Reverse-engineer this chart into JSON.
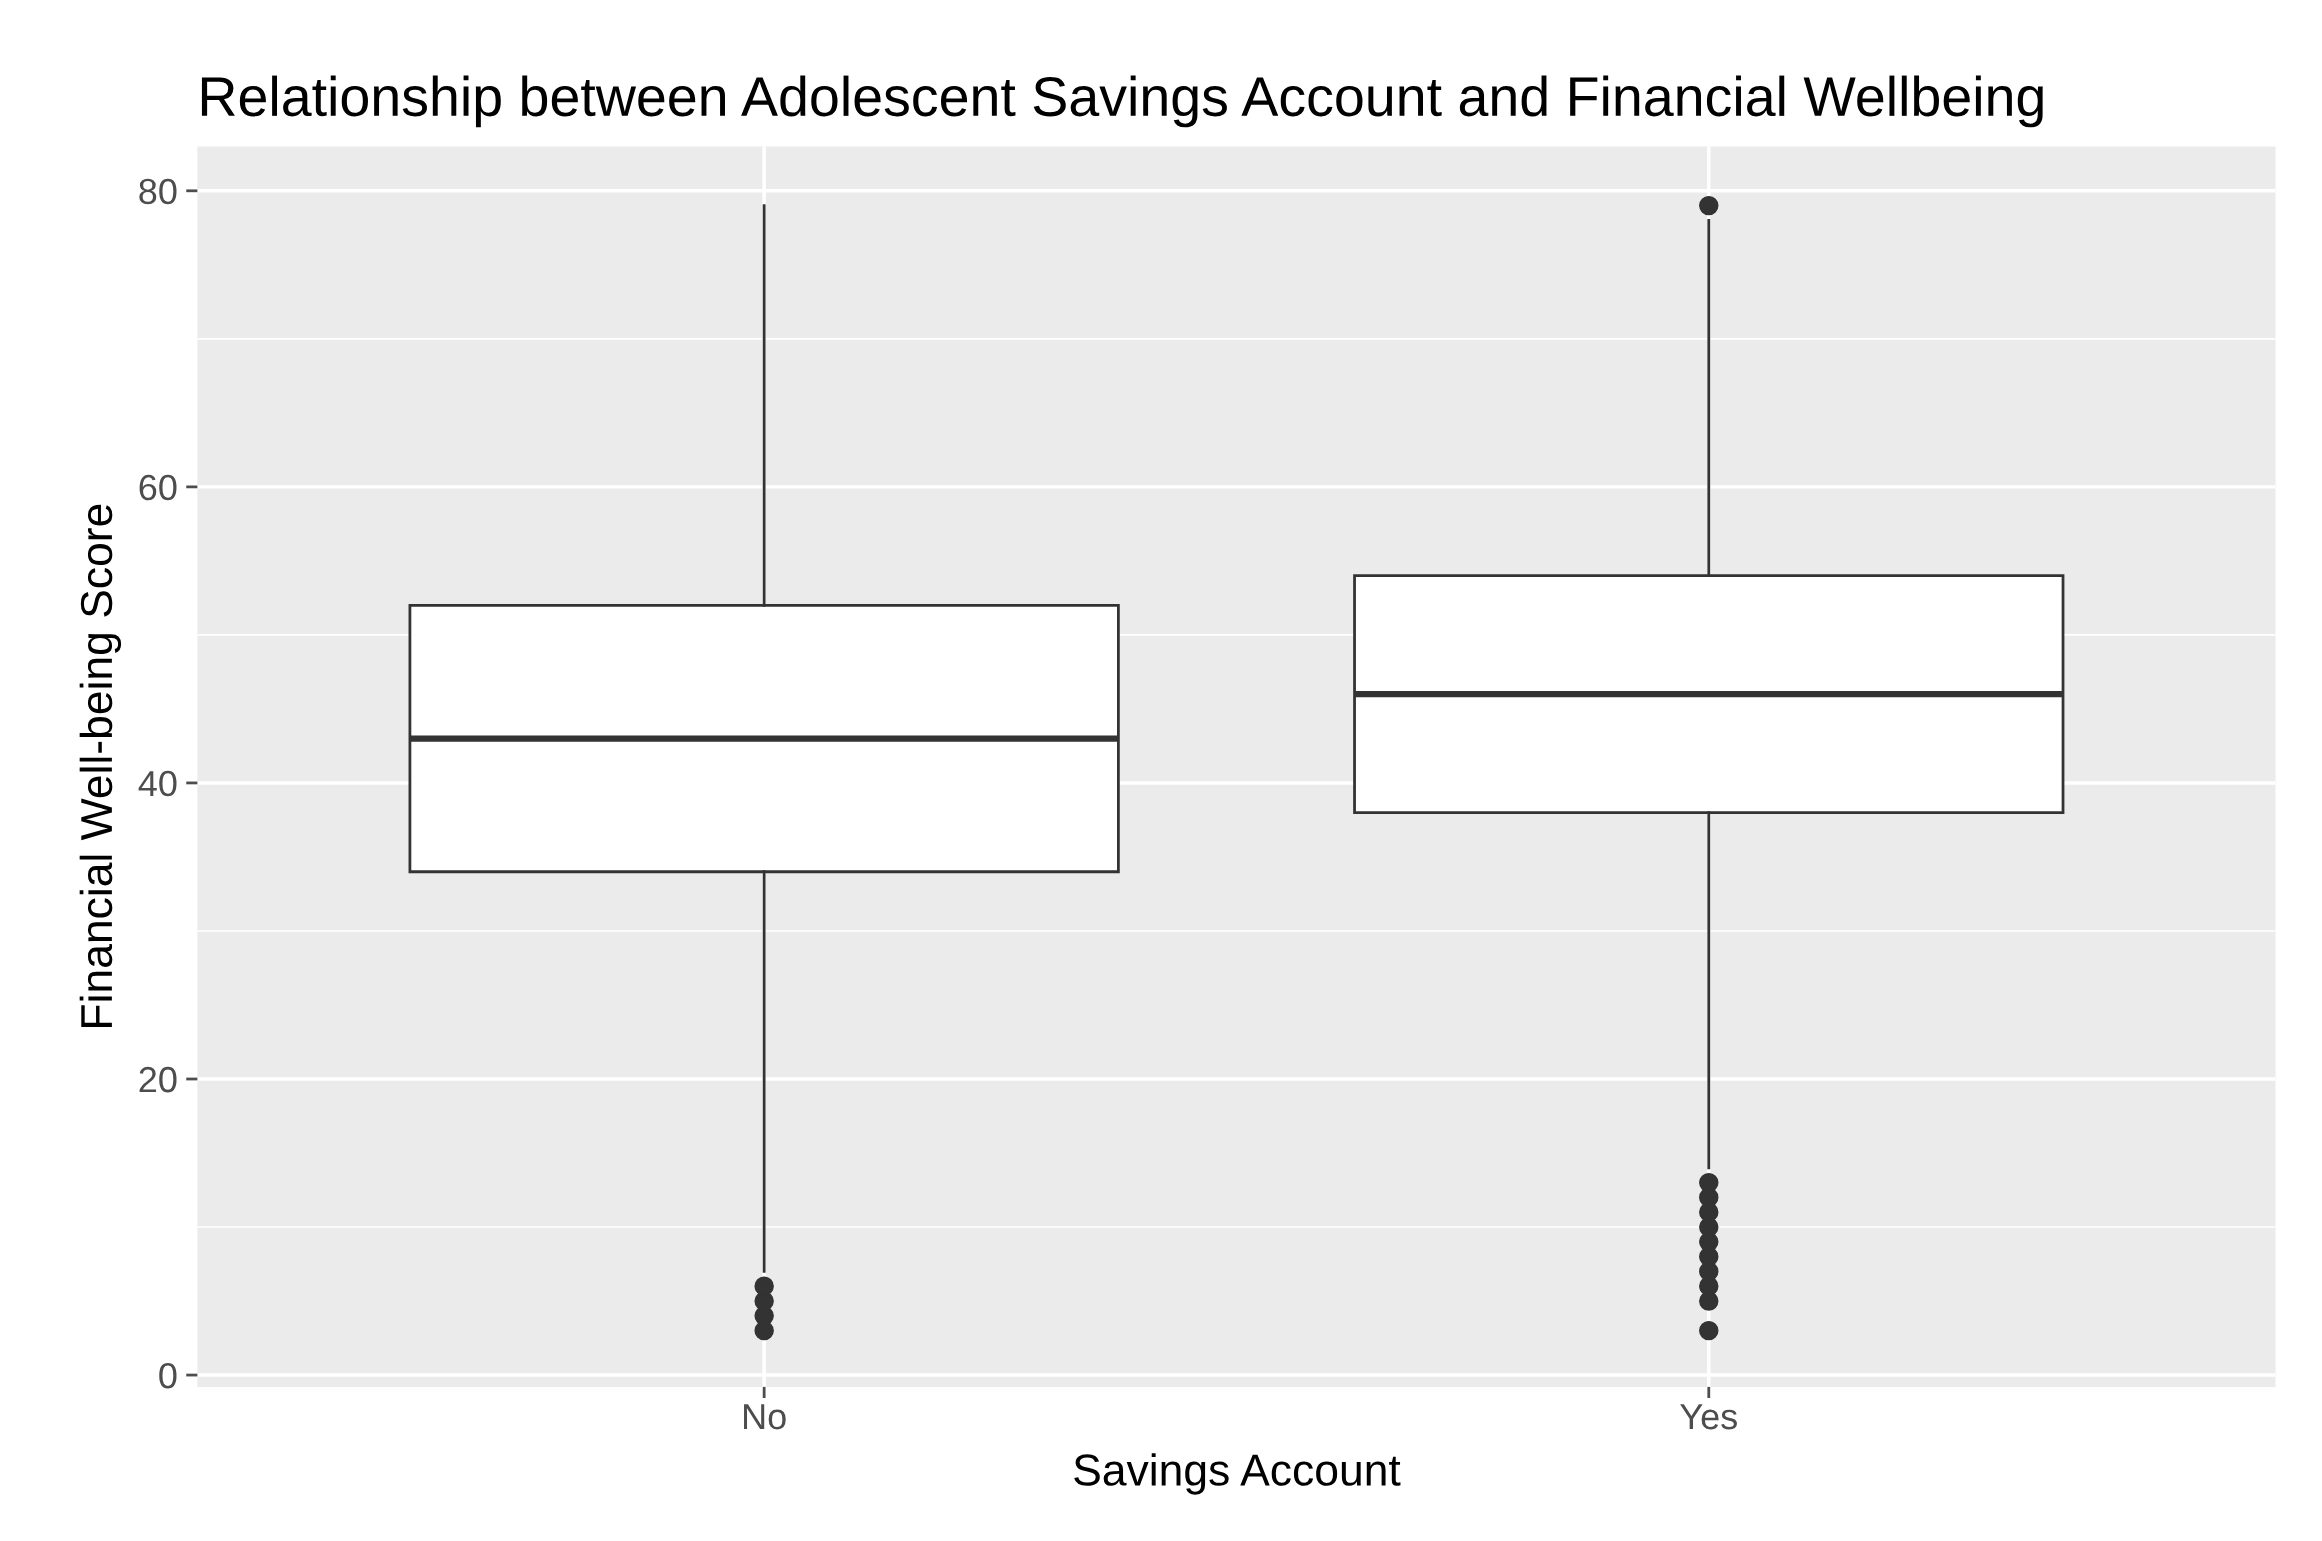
{
  "chart_data": {
    "type": "box",
    "title": "Relationship between Adolescent Savings Account and Financial Wellbeing",
    "xlabel": "Savings Account",
    "ylabel": "Financial Well-being Score",
    "categories": [
      "No",
      "Yes"
    ],
    "boxes": [
      {
        "low": 7,
        "q1": 34,
        "median": 43,
        "q3": 52,
        "high": 79,
        "outliers": [
          3,
          4,
          5,
          6
        ]
      },
      {
        "low": 14,
        "q1": 38,
        "median": 46,
        "q3": 54,
        "high": 78,
        "outliers": [
          3,
          5,
          6,
          7,
          8,
          9,
          10,
          11,
          12,
          13,
          79
        ]
      }
    ],
    "ylim": [
      -0.8,
      83
    ],
    "yticks": [
      0,
      20,
      40,
      60,
      80
    ],
    "grid": true
  }
}
